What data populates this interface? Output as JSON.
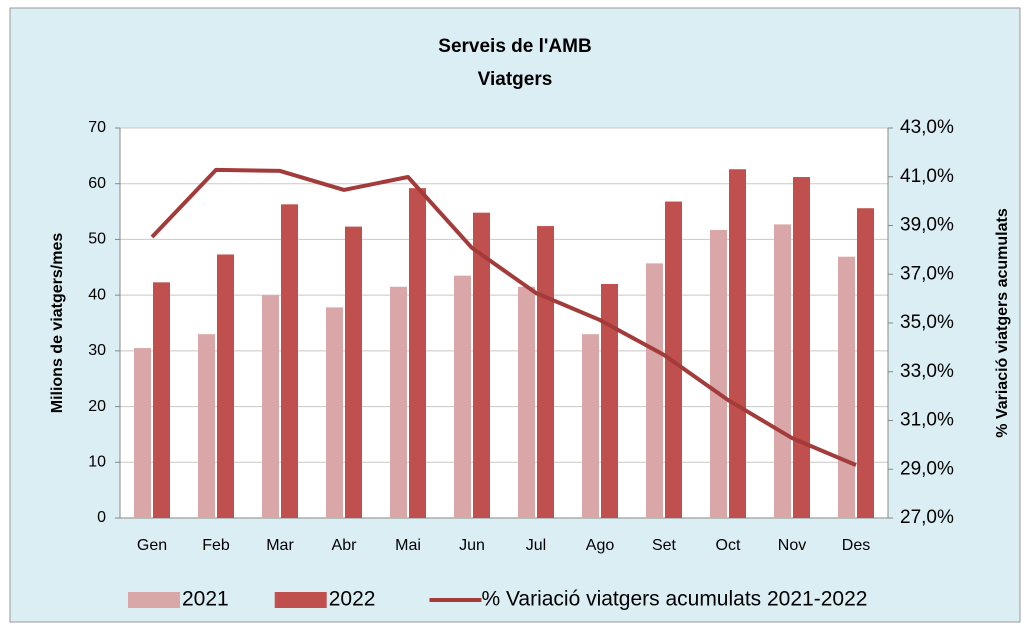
{
  "chart_data": {
    "type": "bar-line",
    "title": "Serveis de l'AMB",
    "subtitle": "Viatgers",
    "ylabel": "Milions de viatgers/mes",
    "y2label": "% Variació viatgers acumulats",
    "categories": [
      "Gen",
      "Feb",
      "Mar",
      "Abr",
      "Mai",
      "Jun",
      "Jul",
      "Ago",
      "Set",
      "Oct",
      "Nov",
      "Des"
    ],
    "series": [
      {
        "name": "2021",
        "type": "bar",
        "color": "#d9a7a8",
        "values": [
          30.5,
          33,
          40,
          37.8,
          41.5,
          43.5,
          41.5,
          33,
          45.7,
          51.7,
          52.7,
          46.9
        ]
      },
      {
        "name": "2022",
        "type": "bar",
        "color": "#c0504d",
        "values": [
          42.3,
          47.3,
          56.3,
          52.3,
          59.2,
          54.8,
          52.4,
          42,
          56.8,
          62.6,
          61.2,
          55.6
        ]
      },
      {
        "name": "% Variació viatgers acumulats 2021-2022",
        "type": "line",
        "axis": "y2",
        "color": "#a33b3b",
        "values": [
          38.53,
          41.28,
          41.24,
          40.46,
          40.99,
          38.08,
          36.23,
          35.12,
          33.69,
          31.84,
          30.28,
          29.17
        ]
      }
    ],
    "ylim": [
      0,
      70
    ],
    "yticks": [
      0,
      10,
      20,
      30,
      40,
      50,
      60,
      70
    ],
    "y2lim": [
      27,
      43
    ],
    "y2ticks": [
      {
        "value": 27,
        "label": "27,0%"
      },
      {
        "value": 29,
        "label": "29,0%"
      },
      {
        "value": 31,
        "label": "31,0%"
      },
      {
        "value": 33,
        "label": "33,0%"
      },
      {
        "value": 35,
        "label": "35,0%"
      },
      {
        "value": 37,
        "label": "37,0%"
      },
      {
        "value": 39,
        "label": "39,0%"
      },
      {
        "value": 41,
        "label": "41,0%"
      },
      {
        "value": 43,
        "label": "43,0%"
      }
    ],
    "grid": true,
    "legend": "bottom"
  }
}
